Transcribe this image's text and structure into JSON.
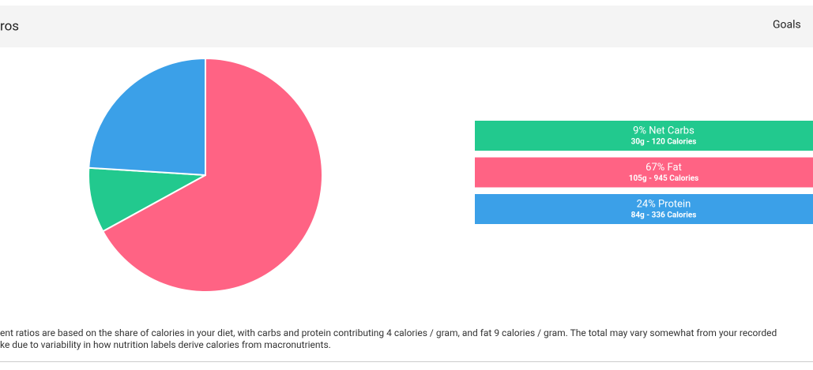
{
  "header": {
    "title": "ros",
    "tab": "Goals"
  },
  "chart_data": {
    "type": "pie",
    "categories": [
      "Net Carbs",
      "Fat",
      "Protein"
    ],
    "values": [
      9,
      67,
      24
    ],
    "value_labels": [
      "9% Net Carbs",
      "67% Fat",
      "24% Protein"
    ],
    "details": [
      "30g - 120 Calories",
      "105g - 945 Calories",
      "84g - 336 Calories"
    ],
    "colors": [
      "#22c98e",
      "#ff6384",
      "#3ba0e8"
    ]
  },
  "footnote": [
    "ent ratios are based on the share of calories in your diet, with carbs and protein contributing 4 calories / gram, and fat 9 calories / gram. The total may vary somewhat from your recorded",
    "ke due to variability in how nutrition labels derive calories from macronutrients."
  ]
}
